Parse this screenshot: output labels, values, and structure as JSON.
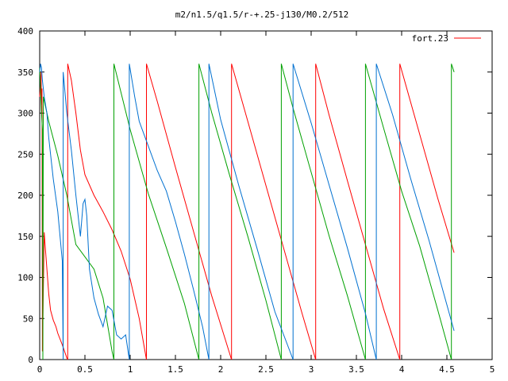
{
  "chart_data": {
    "type": "line",
    "title": "m2/n1.5/q1.5/r-+.25-j130/M0.2/512",
    "xlabel": "",
    "ylabel": "",
    "xlim": [
      0,
      5
    ],
    "ylim": [
      0,
      400
    ],
    "xticks": [
      0,
      0.5,
      1,
      1.5,
      2,
      2.5,
      3,
      3.5,
      4,
      4.5,
      5
    ],
    "yticks": [
      0,
      50,
      100,
      150,
      200,
      250,
      300,
      350,
      400
    ],
    "xtick_labels": [
      "0",
      "0.5",
      "1",
      "1.5",
      "2",
      "2.5",
      "3",
      "3.5",
      "4",
      "4.5",
      "5"
    ],
    "ytick_labels": [
      "0",
      "50",
      "100",
      "150",
      "200",
      "250",
      "300",
      "350",
      "400"
    ],
    "grid": false,
    "legend_position": "top-right",
    "series": [
      {
        "name": "fort.23",
        "color": "#ff0000",
        "x": [
          0.0,
          0.01,
          0.015,
          0.02,
          0.025,
          0.03,
          0.05,
          0.06,
          0.08,
          0.1,
          0.12,
          0.15,
          0.18,
          0.2,
          0.25,
          0.3,
          0.31,
          0.31,
          0.32,
          0.35,
          0.4,
          0.45,
          0.5,
          0.6,
          0.7,
          0.8,
          0.9,
          1.0,
          1.1,
          1.18,
          1.18,
          1.3,
          1.5,
          1.7,
          1.9,
          2.12,
          2.12,
          2.3,
          2.5,
          2.7,
          2.9,
          3.05,
          3.05,
          3.2,
          3.4,
          3.6,
          3.8,
          3.98,
          3.98,
          4.2,
          4.4,
          4.58
        ],
        "y": [
          320,
          335,
          350,
          310,
          330,
          10,
          155,
          140,
          110,
          80,
          60,
          48,
          40,
          32,
          18,
          2,
          0,
          360,
          355,
          340,
          300,
          255,
          225,
          200,
          180,
          158,
          132,
          98,
          50,
          0,
          360,
          314,
          234,
          156,
          78,
          0,
          360,
          290,
          212,
          134,
          56,
          0,
          360,
          297,
          218,
          140,
          62,
          0,
          360,
          274,
          196,
          130
        ]
      },
      {
        "name": "",
        "color": "#00a000",
        "x": [
          0.0,
          0.01,
          0.02,
          0.03,
          0.035,
          0.04,
          0.1,
          0.2,
          0.3,
          0.4,
          0.5,
          0.6,
          0.7,
          0.8,
          0.82,
          0.82,
          1.0,
          1.2,
          1.4,
          1.6,
          1.76,
          1.76,
          1.9,
          2.1,
          2.3,
          2.5,
          2.67,
          2.67,
          2.8,
          3.0,
          3.2,
          3.4,
          3.6,
          3.6,
          3.8,
          4.0,
          4.2,
          4.4,
          4.55,
          4.55,
          4.58
        ],
        "y": [
          355,
          330,
          300,
          280,
          0,
          320,
          290,
          248,
          200,
          140,
          125,
          110,
          75,
          10,
          0,
          360,
          280,
          202,
          136,
          68,
          0,
          360,
          301,
          224,
          150,
          72,
          0,
          360,
          306,
          228,
          150,
          78,
          0,
          360,
          282,
          205,
          138,
          60,
          0,
          360,
          350
        ]
      },
      {
        "name": "",
        "color": "#0070d0",
        "x": [
          0.0,
          0.01,
          0.02,
          0.03,
          0.05,
          0.08,
          0.1,
          0.15,
          0.2,
          0.25,
          0.26,
          0.26,
          0.3,
          0.35,
          0.4,
          0.45,
          0.48,
          0.5,
          0.52,
          0.55,
          0.6,
          0.65,
          0.7,
          0.75,
          0.8,
          0.85,
          0.9,
          0.95,
          0.99,
          0.99,
          1.05,
          1.1,
          1.2,
          1.3,
          1.4,
          1.5,
          1.6,
          1.7,
          1.8,
          1.87,
          1.87,
          2.0,
          2.2,
          2.4,
          2.6,
          2.8,
          2.8,
          3.0,
          3.2,
          3.4,
          3.6,
          3.72,
          3.72,
          3.9,
          4.1,
          4.3,
          4.58
        ],
        "y": [
          350,
          360,
          355,
          340,
          320,
          300,
          270,
          220,
          180,
          120,
          0,
          350,
          300,
          255,
          200,
          150,
          190,
          195,
          175,
          110,
          75,
          55,
          40,
          65,
          60,
          30,
          25,
          30,
          0,
          360,
          320,
          290,
          260,
          230,
          205,
          168,
          128,
          85,
          40,
          0,
          360,
          292,
          212,
          136,
          58,
          0,
          360,
          288,
          212,
          136,
          56,
          0,
          360,
          298,
          220,
          146,
          35
        ]
      }
    ]
  }
}
